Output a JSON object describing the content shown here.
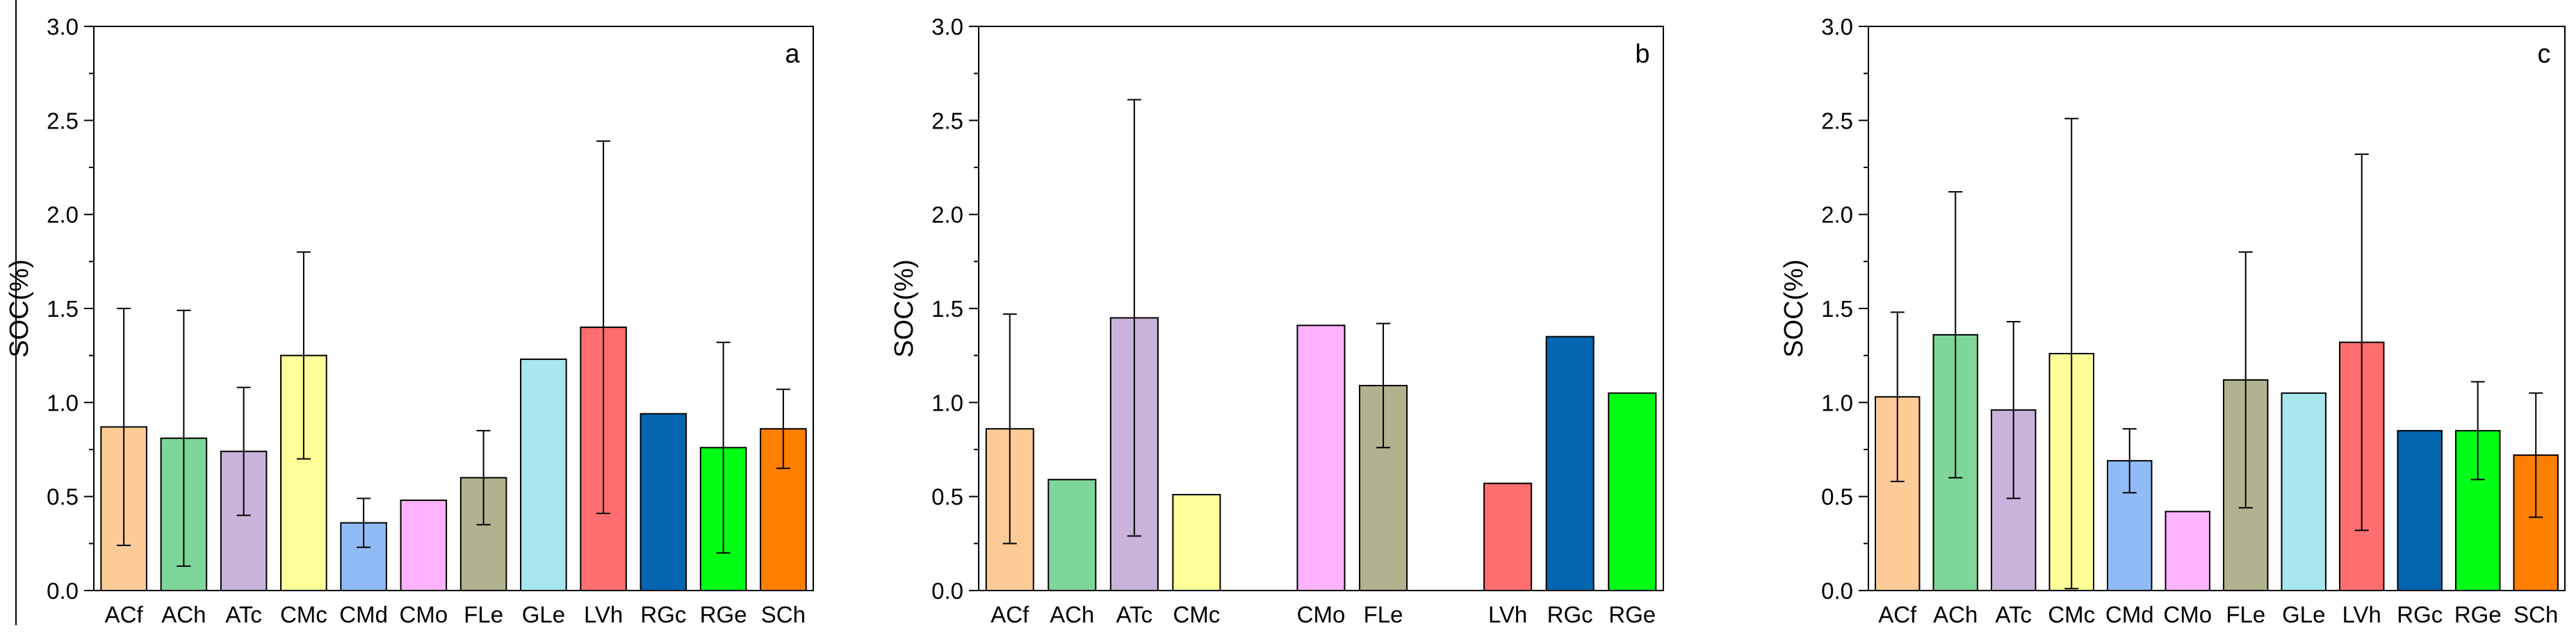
{
  "colors": {
    "ACf": "#FDCB96",
    "ACh": "#7ED69A",
    "ATc": "#C9B3DA",
    "CMc": "#FFFF99",
    "CMd": "#8FBCF7",
    "CMo": "#FFB3FF",
    "FLe": "#B1B38E",
    "GLe": "#A6E8EE",
    "LVh": "#FF6E6E",
    "RGc": "#0466AF",
    "RGe": "#00FF14",
    "SCh": "#FF7F00"
  },
  "chart_data": [
    {
      "type": "bar",
      "panel_label": "a",
      "ylabel": "SOC(%)",
      "ylim": [
        0,
        3.0
      ],
      "yticks": [
        "0.0",
        "0.5",
        "1.0",
        "1.5",
        "2.0",
        "2.5",
        "3.0"
      ],
      "categories": [
        "ACf",
        "ACh",
        "ATc",
        "CMc",
        "CMd",
        "CMo",
        "FLe",
        "GLe",
        "LVh",
        "RGc",
        "RGe",
        "SCh"
      ],
      "values": [
        0.87,
        0.81,
        0.74,
        1.25,
        0.36,
        0.48,
        0.6,
        1.23,
        1.4,
        0.94,
        0.76,
        0.86
      ],
      "errors": [
        0.63,
        0.68,
        0.34,
        0.55,
        0.13,
        null,
        0.25,
        null,
        0.99,
        null,
        0.56,
        0.21
      ]
    },
    {
      "type": "bar",
      "panel_label": "b",
      "ylabel": "SOC(%)",
      "ylim": [
        0,
        3.0
      ],
      "yticks": [
        "0.0",
        "0.5",
        "1.0",
        "1.5",
        "2.0",
        "2.5",
        "3.0"
      ],
      "categories": [
        "ACf",
        "ACh",
        "ATc",
        "CMc",
        "",
        "CMo",
        "FLe",
        "",
        "LVh",
        "RGc",
        "RGe"
      ],
      "values": [
        0.86,
        0.59,
        1.45,
        0.51,
        null,
        1.41,
        1.09,
        null,
        0.57,
        1.35,
        1.05
      ],
      "errors": [
        0.61,
        null,
        1.16,
        null,
        null,
        null,
        0.33,
        null,
        null,
        null,
        null
      ]
    },
    {
      "type": "bar",
      "panel_label": "c",
      "ylabel": "SOC(%)",
      "ylim": [
        0,
        3.0
      ],
      "yticks": [
        "0.0",
        "0.5",
        "1.0",
        "1.5",
        "2.0",
        "2.5",
        "3.0"
      ],
      "categories": [
        "ACf",
        "ACh",
        "ATc",
        "CMc",
        "CMd",
        "CMo",
        "FLe",
        "GLe",
        "LVh",
        "RGc",
        "RGe",
        "SCh"
      ],
      "values": [
        1.03,
        1.36,
        0.96,
        1.26,
        0.69,
        0.42,
        1.12,
        1.05,
        1.32,
        0.85,
        0.85,
        0.72
      ],
      "errors": [
        0.45,
        0.76,
        0.47,
        1.25,
        0.17,
        null,
        0.68,
        null,
        1.0,
        null,
        0.26,
        0.33
      ]
    }
  ]
}
